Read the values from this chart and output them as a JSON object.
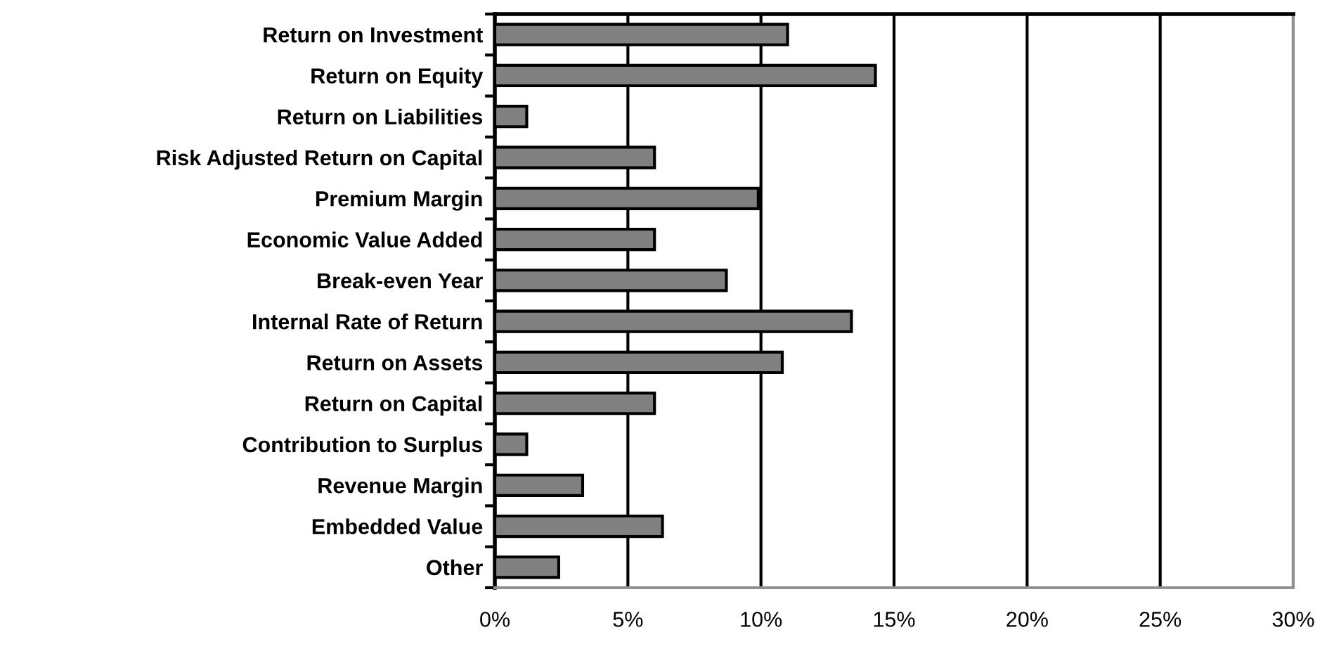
{
  "chart_data": {
    "type": "bar",
    "orientation": "horizontal",
    "categories": [
      "Return on Investment",
      "Return on Equity",
      "Return on Liabilities",
      "Risk Adjusted Return on Capital",
      "Premium Margin",
      "Economic Value Added",
      "Break-even Year",
      "Internal Rate of Return",
      "Return on Assets",
      "Return on Capital",
      "Contribution to Surplus",
      "Revenue Margin",
      "Embedded Value",
      "Other"
    ],
    "values": [
      11.0,
      14.3,
      1.2,
      6.0,
      9.9,
      6.0,
      8.7,
      13.4,
      10.8,
      6.0,
      1.2,
      3.3,
      6.3,
      2.4
    ],
    "color": "#808080",
    "xlim": [
      0,
      30
    ],
    "xticks": [
      {
        "value": 0,
        "label": "0%"
      },
      {
        "value": 5,
        "label": "5%"
      },
      {
        "value": 10,
        "label": "10%"
      },
      {
        "value": 15,
        "label": "15%"
      },
      {
        "value": 20,
        "label": "20%"
      },
      {
        "value": 25,
        "label": "25%"
      },
      {
        "value": 30,
        "label": "30%"
      }
    ],
    "grid": "x"
  }
}
